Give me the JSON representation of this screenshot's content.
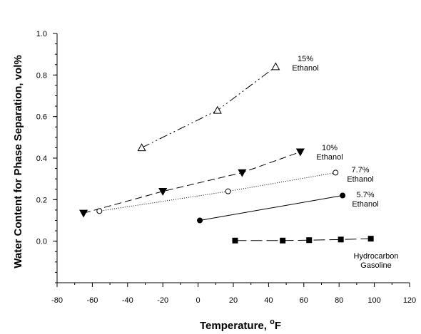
{
  "chart_data": {
    "type": "line",
    "xlabel": "Temperature,",
    "xlabel_unit_sup": "o",
    "xlabel_unit": "F",
    "ylabel": "Water Content for Phase Separation, vol%",
    "xlim": [
      -80,
      120
    ],
    "ylim": [
      -0.2,
      1.0
    ],
    "x_ticks": [
      -80,
      -60,
      -40,
      -20,
      0,
      20,
      40,
      60,
      80,
      100,
      120
    ],
    "y_ticks": [
      0.0,
      0.2,
      0.4,
      0.6,
      0.8,
      1.0
    ],
    "grid": false,
    "series": [
      {
        "label_lines": [
          "15%",
          "Ethanol"
        ],
        "marker": "triangle-up-open",
        "dash": "12,4,2,4,2,4",
        "x": [
          -32,
          11,
          44
        ],
        "y": [
          0.45,
          0.63,
          0.84
        ]
      },
      {
        "label_lines": [
          "10%",
          "Ethanol"
        ],
        "marker": "triangle-down-filled",
        "dash": "10,5",
        "x": [
          -65,
          -20,
          25,
          58
        ],
        "y": [
          0.135,
          0.24,
          0.33,
          0.43
        ]
      },
      {
        "label_lines": [
          "7.7%",
          "Ethanol"
        ],
        "marker": "circle-open",
        "dash": "1,2",
        "x": [
          -56,
          17,
          78
        ],
        "y": [
          0.145,
          0.24,
          0.33
        ]
      },
      {
        "label_lines": [
          "5.7%",
          "Ethanol"
        ],
        "marker": "circle-filled",
        "dash": "",
        "x": [
          1,
          82
        ],
        "y": [
          0.1,
          0.22
        ]
      },
      {
        "label_lines": [
          "Hydrocarbon",
          "Gasoline"
        ],
        "marker": "square-filled",
        "dash": "16,6",
        "x": [
          21,
          48,
          63,
          81,
          98
        ],
        "y": [
          0.003,
          0.003,
          0.005,
          0.008,
          0.012
        ]
      }
    ]
  }
}
